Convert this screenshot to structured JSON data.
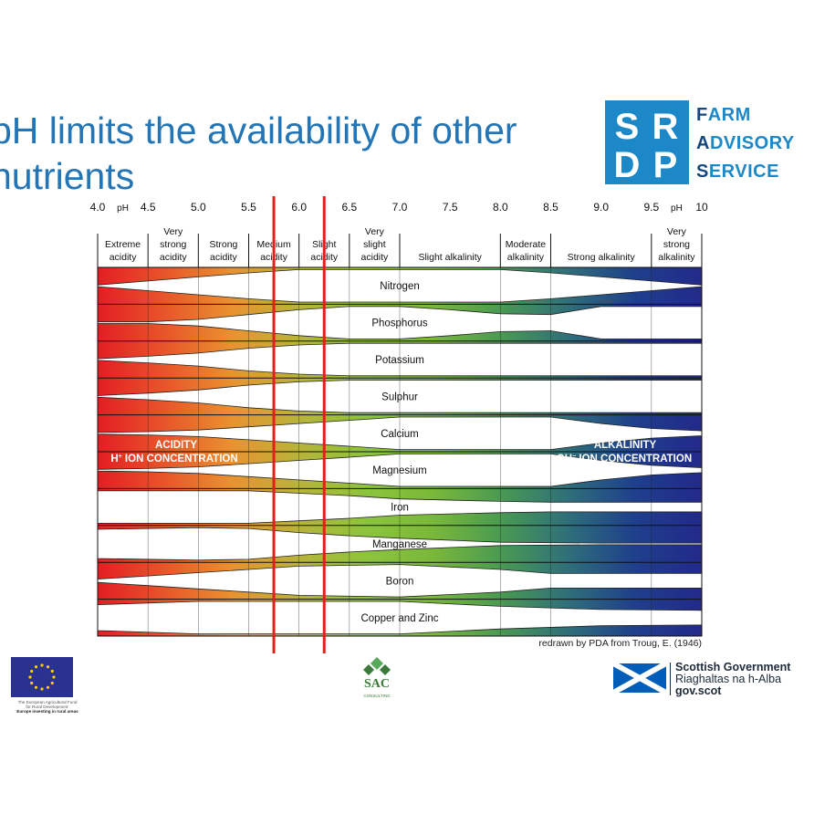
{
  "slide": {
    "title_lines": [
      "pH limits the availability of other",
      "nutrients"
    ]
  },
  "srdp": {
    "logo_letters": [
      "S",
      "R",
      "D",
      "P"
    ],
    "line1": {
      "initial": "F",
      "rest": "ARM"
    },
    "line2": {
      "initial": "A",
      "rest": "DVISORY"
    },
    "line3": {
      "initial": "S",
      "rest": "ERVICE"
    }
  },
  "chart_data": {
    "type": "nutrient availability band chart",
    "ph_axis_label": "pH",
    "ph_ticks": [
      "4.0",
      "4.5",
      "5.0",
      "5.5",
      "6.0",
      "6.5",
      "7.0",
      "7.5",
      "8.0",
      "8.5",
      "9.0",
      "9.5",
      "10"
    ],
    "ph_range": [
      4.0,
      10.0
    ],
    "acidity_zones": [
      {
        "lines": [
          "Extreme",
          "acidity"
        ],
        "from": 4.0,
        "to": 4.5
      },
      {
        "lines": [
          "Very",
          "strong",
          "acidity"
        ],
        "from": 4.5,
        "to": 5.0
      },
      {
        "lines": [
          "Strong",
          "acidity"
        ],
        "from": 5.0,
        "to": 5.5
      },
      {
        "lines": [
          "Medium",
          "acidity"
        ],
        "from": 5.5,
        "to": 6.0
      },
      {
        "lines": [
          "Slight",
          "acidity"
        ],
        "from": 6.0,
        "to": 6.5
      },
      {
        "lines": [
          "Very",
          "slight",
          "acidity"
        ],
        "from": 6.5,
        "to": 7.0
      },
      {
        "lines": [
          "Slight alkalinity"
        ],
        "from": 7.0,
        "to": 8.0
      },
      {
        "lines": [
          "Moderate",
          "alkalinity"
        ],
        "from": 8.0,
        "to": 8.5
      },
      {
        "lines": [
          "Strong alkalinity"
        ],
        "from": 8.5,
        "to": 9.5
      },
      {
        "lines": [
          "Very",
          "strong",
          "alkalinity"
        ],
        "from": 9.5,
        "to": 10.0
      }
    ],
    "nutrients": [
      {
        "name": "Nitrogen",
        "availability": [
          [
            4.0,
            0.05
          ],
          [
            4.5,
            0.3
          ],
          [
            5.0,
            0.55
          ],
          [
            5.5,
            0.8
          ],
          [
            6.0,
            1.0
          ],
          [
            7.5,
            1.0
          ],
          [
            8.0,
            1.0
          ],
          [
            8.5,
            0.8
          ],
          [
            9.0,
            0.55
          ],
          [
            9.5,
            0.3
          ],
          [
            10.0,
            0.05
          ]
        ]
      },
      {
        "name": "Phosphorus",
        "availability": [
          [
            4.0,
            0.05
          ],
          [
            4.5,
            0.05
          ],
          [
            5.0,
            0.2
          ],
          [
            5.5,
            0.5
          ],
          [
            6.0,
            0.8
          ],
          [
            6.5,
            1.0
          ],
          [
            7.0,
            1.0
          ],
          [
            7.5,
            0.8
          ],
          [
            8.0,
            0.55
          ],
          [
            8.5,
            0.5
          ],
          [
            9.0,
            1.0
          ],
          [
            10.0,
            1.0
          ]
        ]
      },
      {
        "name": "Potassium",
        "availability": [
          [
            4.0,
            0.05
          ],
          [
            4.5,
            0.2
          ],
          [
            5.0,
            0.4
          ],
          [
            5.5,
            0.7
          ],
          [
            6.0,
            0.9
          ],
          [
            6.5,
            1.0
          ],
          [
            10.0,
            1.0
          ]
        ]
      },
      {
        "name": "Sulphur",
        "availability": [
          [
            4.0,
            0.05
          ],
          [
            4.5,
            0.2
          ],
          [
            5.0,
            0.4
          ],
          [
            5.5,
            0.7
          ],
          [
            6.0,
            0.9
          ],
          [
            6.5,
            1.0
          ],
          [
            10.0,
            1.0
          ]
        ]
      },
      {
        "name": "Calcium",
        "availability": [
          [
            4.0,
            0.05
          ],
          [
            4.5,
            0.1
          ],
          [
            5.0,
            0.2
          ],
          [
            5.5,
            0.4
          ],
          [
            6.0,
            0.6
          ],
          [
            6.5,
            0.8
          ],
          [
            7.0,
            1.0
          ],
          [
            8.5,
            1.0
          ],
          [
            9.0,
            0.6
          ],
          [
            9.5,
            0.3
          ],
          [
            10.0,
            0.15
          ]
        ]
      },
      {
        "name": "Magnesium",
        "availability": [
          [
            4.0,
            0.05
          ],
          [
            4.5,
            0.1
          ],
          [
            5.0,
            0.2
          ],
          [
            5.5,
            0.4
          ],
          [
            6.0,
            0.6
          ],
          [
            6.5,
            0.8
          ],
          [
            7.0,
            1.0
          ],
          [
            8.5,
            1.0
          ],
          [
            9.0,
            0.6
          ],
          [
            9.5,
            0.3
          ],
          [
            10.0,
            0.15
          ]
        ]
      },
      {
        "name": "Iron",
        "availability": [
          [
            4.0,
            1.0
          ],
          [
            5.5,
            1.0
          ],
          [
            6.0,
            0.85
          ],
          [
            6.5,
            0.7
          ],
          [
            7.0,
            0.5
          ],
          [
            8.0,
            0.35
          ],
          [
            8.5,
            0.3
          ],
          [
            9.0,
            0.3
          ],
          [
            9.5,
            0.3
          ],
          [
            10.0,
            0.3
          ]
        ]
      },
      {
        "name": "Manganese",
        "availability": [
          [
            4.0,
            0.9
          ],
          [
            5.0,
            1.0
          ],
          [
            5.5,
            0.95
          ],
          [
            6.0,
            0.7
          ],
          [
            6.5,
            0.5
          ],
          [
            7.0,
            0.35
          ],
          [
            8.0,
            0.1
          ],
          [
            9.0,
            0.05
          ],
          [
            10.0,
            0.05
          ]
        ]
      },
      {
        "name": "Boron",
        "availability": [
          [
            4.0,
            0.1
          ],
          [
            4.5,
            0.3
          ],
          [
            5.0,
            0.5
          ],
          [
            5.5,
            0.7
          ],
          [
            6.0,
            0.9
          ],
          [
            7.0,
            1.0
          ],
          [
            8.0,
            0.7
          ],
          [
            8.5,
            0.45
          ],
          [
            9.0,
            0.45
          ],
          [
            9.5,
            0.45
          ],
          [
            10.0,
            0.45
          ]
        ]
      },
      {
        "name": "Copper and Zinc",
        "availability": [
          [
            4.0,
            0.8
          ],
          [
            5.0,
            1.0
          ],
          [
            7.0,
            1.0
          ],
          [
            8.0,
            0.7
          ],
          [
            9.0,
            0.5
          ],
          [
            10.0,
            0.45
          ]
        ]
      }
    ],
    "acidity_label": {
      "line1": "ACIDITY",
      "line2_prefix": "H",
      "line2_sup": "+",
      "line2_rest": "  ION CONCENTRATION"
    },
    "alkalinity_label": {
      "line1": "ALKALINITY",
      "line2_prefix": "OH",
      "line2_sup": "−",
      "line2_rest": "  ION CONCENTRATION"
    },
    "highlight_lines_ph": [
      5.75,
      6.25
    ],
    "highlight_color": "#e0201b",
    "gradient_colors": [
      "#e31e24",
      "#e8552a",
      "#e99230",
      "#b8b43a",
      "#8cc43c",
      "#7ab83a",
      "#4a9a52",
      "#2f6f7a",
      "#1f3f8c",
      "#22298a"
    ],
    "source": "redrawn by PDA from Troug, E. (1946)"
  },
  "eu": {
    "caption_line1": "The European Agricultural Fund",
    "caption_line2": "for Rural Development:",
    "caption_line3": "Europe investing in rural areas"
  },
  "sac": {
    "name": "SAC",
    "sub": "CONSULTING"
  },
  "scotgov": {
    "line1": "Scottish Government",
    "line2": "Riaghaltas na h-Alba",
    "line3": "gov.scot"
  }
}
